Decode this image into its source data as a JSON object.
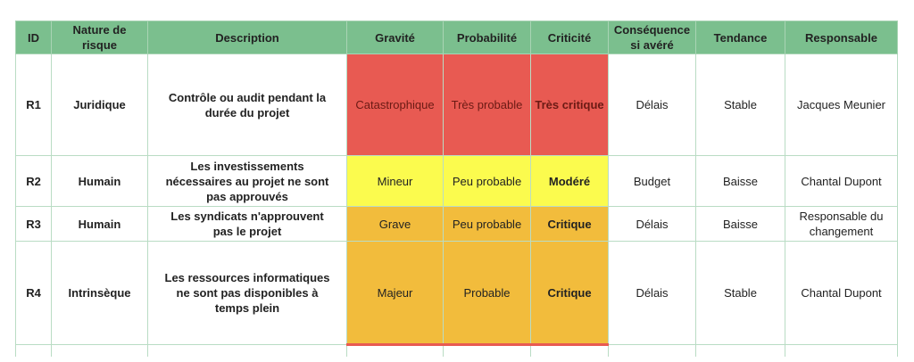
{
  "headers": [
    "ID",
    "Nature de risque",
    "Description",
    "Gravité",
    "Probabilité",
    "Criticité",
    "Conséquence si avéré",
    "Tendance",
    "Responsable"
  ],
  "colors": {
    "header": "#7bbf8e",
    "very_critical": "#e85a52",
    "moderate": "#fbfb4e",
    "critical": "#f2bc3c"
  },
  "rows": [
    {
      "id": "R1",
      "nature": "Juridique",
      "description": "Contrôle ou audit pendant la durée du projet",
      "gravite": "Catastrophique",
      "probabilite": "Très probable",
      "criticite": "Très critique",
      "consequence": "Délais",
      "tendance": "Stable",
      "responsable": "Jacques Meunier",
      "level": "red"
    },
    {
      "id": "R2",
      "nature": "Humain",
      "description": "Les investissements nécessaires au projet ne sont pas approuvés",
      "gravite": "Mineur",
      "probabilite": "Peu probable",
      "criticite": "Modéré",
      "consequence": "Budget",
      "tendance": "Baisse",
      "responsable": "Chantal Dupont",
      "level": "yellow"
    },
    {
      "id": "R3",
      "nature": "Humain",
      "description": "Les syndicats n'approuvent pas le projet",
      "gravite": "Grave",
      "probabilite": "Peu probable",
      "criticite": "Critique",
      "consequence": "Délais",
      "tendance": "Baisse",
      "responsable": "Responsable du changement",
      "level": "orange"
    },
    {
      "id": "R4",
      "nature": "Intrinsèque",
      "description": "Les ressources informatiques ne sont pas disponibles à temps plein",
      "gravite": "Majeur",
      "probabilite": "Probable",
      "criticite": "Critique",
      "consequence": "Délais",
      "tendance": "Stable",
      "responsable": "Chantal Dupont",
      "level": "orange"
    }
  ]
}
